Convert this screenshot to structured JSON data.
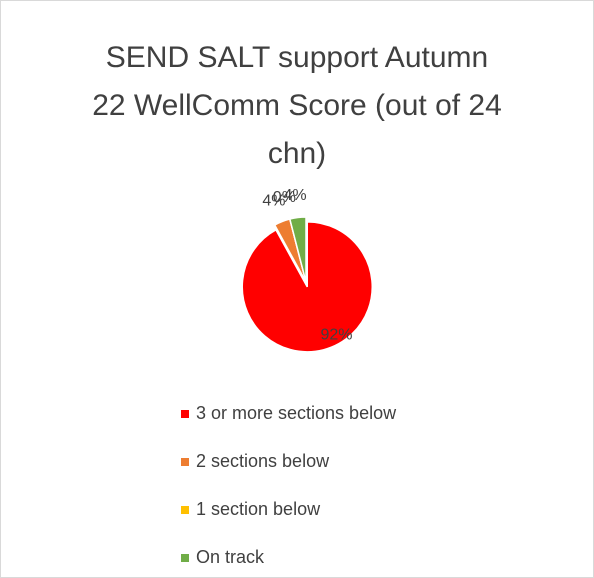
{
  "chart_data": {
    "type": "pie",
    "title": "SEND SALT support Autumn 22 WellComm Score (out of 24 chn)",
    "categories": [
      "3 or more sections below",
      "2 sections below",
      "1 section below",
      "On track"
    ],
    "values": [
      92,
      4,
      0,
      4
    ],
    "value_labels": [
      "92%",
      "4%",
      "0%",
      "4%"
    ],
    "colors": [
      "#ff0000",
      "#ed7d31",
      "#ffc000",
      "#70ad47"
    ],
    "legend": "bottom"
  }
}
